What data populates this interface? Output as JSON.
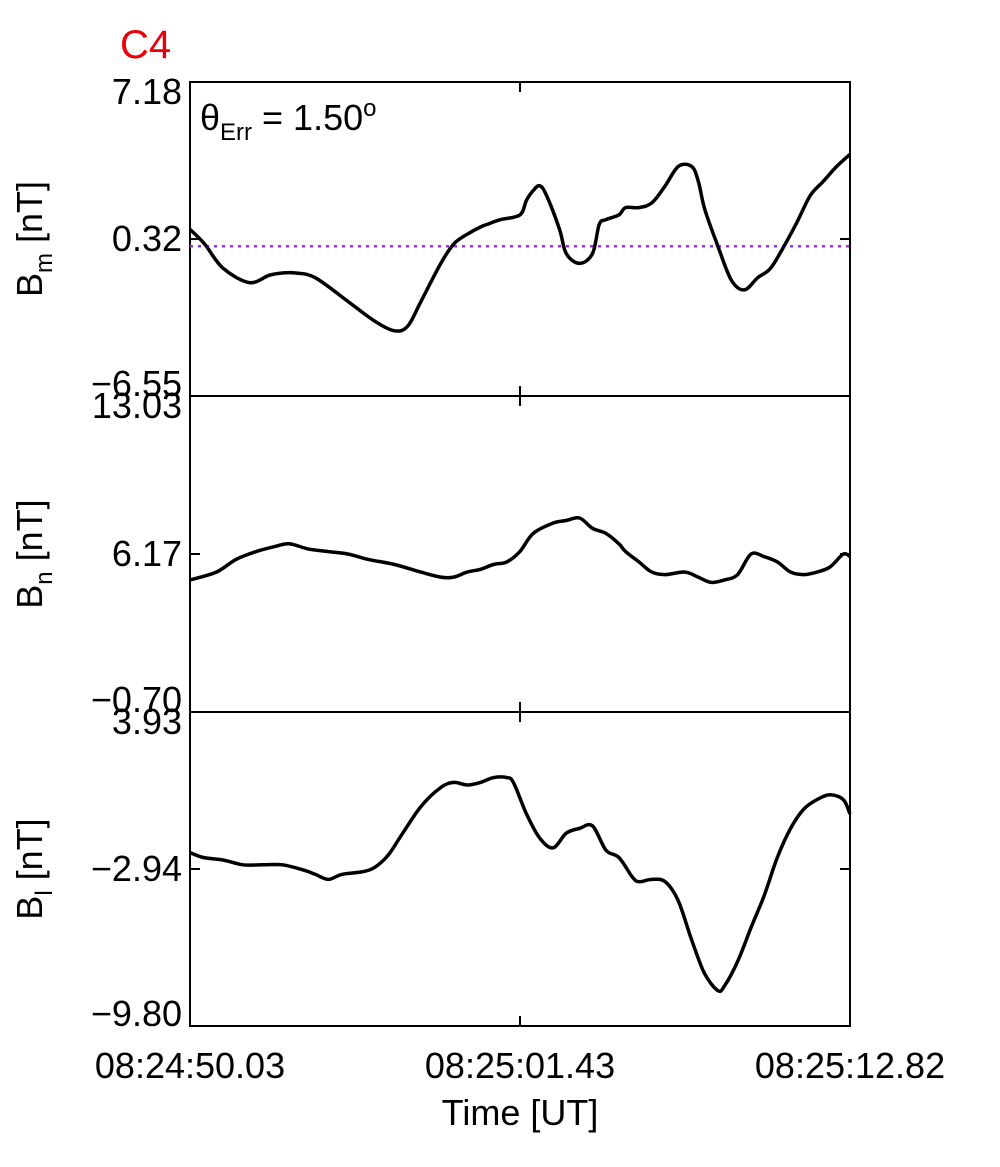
{
  "figure": {
    "title": "C4",
    "title_color": "#e8000b",
    "annotation": {
      "symbol": "θ",
      "subscript": "Err",
      "equals": " =  1.50",
      "superscript": "o"
    }
  },
  "chart_data": {
    "type": "line",
    "xlabel": "Time [UT]",
    "x_ticks": [
      "08:24:50.03",
      "08:25:01.43",
      "08:25:12.82"
    ],
    "x_range_seconds": [
      0,
      22.79
    ],
    "line_color": "#000000",
    "grid": false,
    "panels": [
      {
        "name": "Bm",
        "ylabel_base": "B",
        "ylabel_sub": "m",
        "ylabel_unit": " [nT]",
        "ylim": [
          -6.55,
          7.18
        ],
        "y_ticks": [
          "7.18",
          "0.32",
          "−6.55"
        ],
        "reference_line": {
          "y": 0.0,
          "color": "#9b30d9",
          "style": "dotted"
        },
        "series": [
          {
            "x": [
              0.0,
              0.5,
              1.14,
              2.05,
              2.74,
              3.19,
              3.65,
              4.33,
              5.47,
              6.38,
              7.06,
              7.52,
              7.97,
              8.66,
              9.11,
              9.57,
              10.03,
              10.25,
              10.71,
              11.39,
              11.62,
              11.85,
              12.08,
              12.31,
              12.76,
              12.99,
              13.45,
              13.9,
              14.13,
              14.36,
              14.81,
              15.04,
              15.5,
              15.95,
              16.41,
              16.86,
              17.32,
              17.55,
              17.78,
              18.23,
              18.69,
              19.14,
              19.6,
              20.05,
              20.51,
              20.96,
              21.42,
              21.88,
              22.33,
              22.79
            ],
            "y": [
              0.74,
              0.1,
              -0.96,
              -1.59,
              -1.27,
              -1.17,
              -1.17,
              -1.38,
              -2.43,
              -3.28,
              -3.7,
              -3.49,
              -2.43,
              -0.75,
              0.1,
              0.52,
              0.84,
              0.95,
              1.16,
              1.37,
              2.01,
              2.43,
              2.64,
              2.22,
              0.74,
              -0.32,
              -0.75,
              -0.32,
              0.95,
              1.16,
              1.37,
              1.69,
              1.69,
              1.9,
              2.64,
              3.49,
              3.49,
              2.85,
              1.59,
              0.0,
              -1.48,
              -1.91,
              -1.38,
              -0.96,
              0.0,
              1.05,
              2.22,
              2.85,
              3.49,
              4.02
            ]
          }
        ]
      },
      {
        "name": "Bn",
        "ylabel_base": "B",
        "ylabel_sub": "n",
        "ylabel_unit": " [nT]",
        "ylim": [
          -0.7,
          13.03
        ],
        "y_ticks": [
          "13.03",
          "6.17",
          "−0.70"
        ],
        "series": [
          {
            "x": [
              0.0,
              0.91,
              1.59,
              2.28,
              2.96,
              3.42,
              4.1,
              4.78,
              5.47,
              6.15,
              7.06,
              7.97,
              8.66,
              9.11,
              9.57,
              10.03,
              10.48,
              10.94,
              11.39,
              11.85,
              12.54,
              12.99,
              13.45,
              13.9,
              14.36,
              14.81,
              15.04,
              15.5,
              15.95,
              16.41,
              17.09,
              17.55,
              18.0,
              18.46,
              18.91,
              19.37,
              19.82,
              20.28,
              20.74,
              21.19,
              21.65,
              22.1,
              22.56,
              22.79
            ],
            "y": [
              5.04,
              5.38,
              5.93,
              6.27,
              6.5,
              6.61,
              6.38,
              6.27,
              6.16,
              5.93,
              5.71,
              5.38,
              5.16,
              5.16,
              5.38,
              5.5,
              5.71,
              5.82,
              6.27,
              7.06,
              7.51,
              7.62,
              7.73,
              7.28,
              7.06,
              6.61,
              6.27,
              5.82,
              5.38,
              5.27,
              5.38,
              5.16,
              4.93,
              5.04,
              5.27,
              6.16,
              6.05,
              5.82,
              5.38,
              5.27,
              5.38,
              5.6,
              6.16,
              6.05
            ]
          }
        ]
      },
      {
        "name": "Bl",
        "ylabel_base": "B",
        "ylabel_sub": "l",
        "ylabel_unit": " [nT]",
        "ylim": [
          -9.8,
          3.93
        ],
        "y_ticks": [
          "3.93",
          "−2.94",
          "−9.80"
        ],
        "series": [
          {
            "x": [
              0.0,
              0.46,
              1.14,
              1.82,
              2.51,
              3.19,
              3.87,
              4.33,
              4.78,
              5.24,
              5.93,
              6.38,
              6.84,
              7.29,
              7.97,
              8.66,
              9.11,
              9.57,
              10.03,
              10.48,
              10.94,
              11.17,
              11.62,
              12.08,
              12.54,
              12.99,
              13.45,
              13.9,
              14.36,
              14.81,
              15.27,
              15.5,
              15.95,
              16.41,
              16.86,
              17.32,
              17.77,
              18.23,
              18.46,
              18.91,
              19.37,
              19.82,
              20.28,
              20.74,
              21.19,
              21.65,
              22.1,
              22.56,
              22.79
            ],
            "y": [
              -2.22,
              -2.43,
              -2.54,
              -2.75,
              -2.75,
              -2.75,
              -2.96,
              -3.17,
              -3.39,
              -3.17,
              -3.06,
              -2.86,
              -2.33,
              -1.48,
              -0.21,
              0.63,
              0.85,
              0.74,
              0.85,
              1.06,
              1.06,
              0.84,
              -0.53,
              -1.59,
              -2.01,
              -1.37,
              -1.16,
              -1.05,
              -2.11,
              -2.43,
              -3.28,
              -3.49,
              -3.39,
              -3.49,
              -4.33,
              -6.03,
              -7.51,
              -8.25,
              -8.04,
              -6.98,
              -5.5,
              -4.12,
              -2.43,
              -1.16,
              -0.32,
              0.1,
              0.31,
              0.1,
              -0.53
            ]
          }
        ]
      }
    ]
  }
}
